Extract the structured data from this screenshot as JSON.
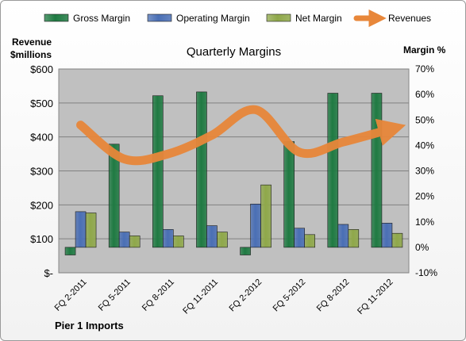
{
  "chart_data": {
    "type": "bar",
    "title": "Quarterly Margins",
    "left_axis_label_line1": "Revenue",
    "left_axis_label_line2": "$millions",
    "right_axis_label": "Margin %",
    "footer": "Pier 1 Imports",
    "categories": [
      "FQ 2-2011",
      "FQ 5-2011",
      "FQ 8-2011",
      "FQ 11-2011",
      "FQ 2-2012",
      "FQ 5-2012",
      "FQ 8-2012",
      "FQ 11-2012"
    ],
    "left_ticks": [
      "$-",
      "$100",
      "$200",
      "$300",
      "$400",
      "$500",
      "$600"
    ],
    "right_ticks": [
      "-10%",
      "0%",
      "10%",
      "20%",
      "30%",
      "40%",
      "50%",
      "60%",
      "70%"
    ],
    "y_left_range": [
      0,
      600
    ],
    "y_right_range": [
      -10,
      70
    ],
    "series": [
      {
        "name": "Gross Margin",
        "kind": "bar",
        "axis": "right",
        "color": "#1f7a42",
        "values": [
          -3,
          40.5,
          59.5,
          61,
          -3,
          41.5,
          60.5,
          60.5
        ]
      },
      {
        "name": "Operating Margin",
        "kind": "bar",
        "axis": "right",
        "color": "#4a6fb5",
        "values": [
          14,
          6,
          7,
          8.5,
          17,
          7.5,
          9,
          9.5
        ]
      },
      {
        "name": "Net Margin",
        "kind": "bar",
        "axis": "right",
        "color": "#8fa84a",
        "values": [
          13.5,
          4.5,
          4.5,
          6,
          24.5,
          5,
          7,
          5.5
        ]
      },
      {
        "name": "Revenues",
        "kind": "line",
        "axis": "left",
        "color": "#e8873a",
        "values": [
          435,
          335,
          350,
          405,
          480,
          355,
          385,
          420
        ]
      }
    ],
    "legend_position": "top",
    "grid": true
  },
  "colors": {
    "plot_bg": "#c0c0c0",
    "grid": "#808080"
  }
}
